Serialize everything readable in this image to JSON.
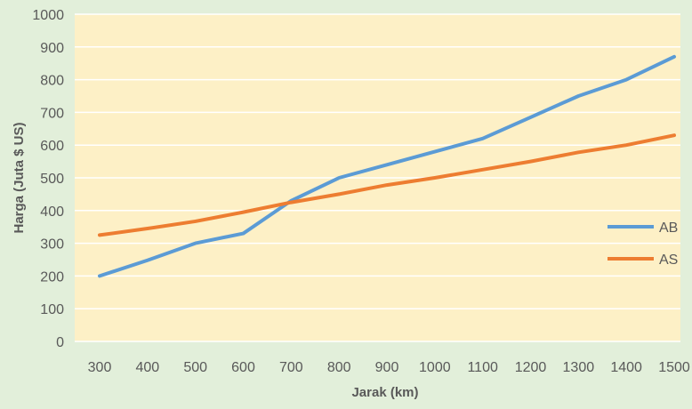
{
  "chart_data": {
    "type": "line",
    "xlabel": "Jarak (km)",
    "ylabel": "Harga (Juta $ US)",
    "x": [
      300,
      400,
      500,
      600,
      700,
      800,
      900,
      1000,
      1100,
      1200,
      1300,
      1400,
      1500
    ],
    "x_tick_labels": [
      "300",
      "400",
      "500",
      "600",
      "700",
      "800",
      "900",
      "1000",
      "1100",
      "1200",
      "1300",
      "1400",
      "1500"
    ],
    "ylim": [
      0,
      1000
    ],
    "y_ticks": [
      0,
      100,
      200,
      300,
      400,
      500,
      600,
      700,
      800,
      900,
      1000
    ],
    "y_tick_labels": [
      "0",
      "100",
      "200",
      "300",
      "400",
      "500",
      "600",
      "700",
      "800",
      "900",
      "1000"
    ],
    "grid": "horizontal",
    "legend_position": "right",
    "series": [
      {
        "name": "AB",
        "color": "#5b9bd5",
        "values": [
          200,
          248,
          300,
          330,
          430,
          500,
          540,
          580,
          620,
          685,
          750,
          800,
          870
        ]
      },
      {
        "name": "AS",
        "color": "#ed7d31",
        "values": [
          325,
          345,
          367,
          395,
          425,
          450,
          478,
          500,
          525,
          550,
          578,
          600,
          630
        ]
      }
    ],
    "plot_background": "#fdf0c6",
    "gridline_color": "#ffffff"
  }
}
